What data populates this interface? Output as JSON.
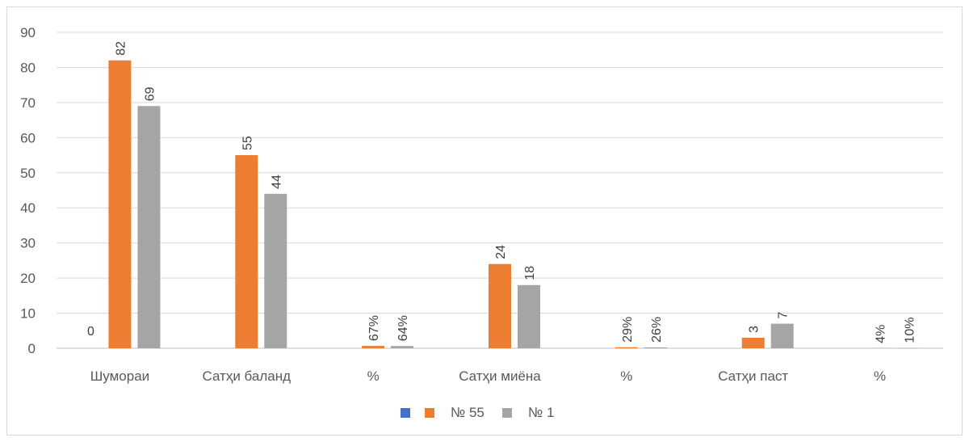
{
  "chart_data": {
    "type": "bar",
    "categories": [
      "Шумораи",
      "Сатҳи баланд",
      "%",
      "Сатҳи миёна",
      "%",
      "Сатҳи паст",
      "%"
    ],
    "ylim": [
      0,
      90
    ],
    "y_ticks": [
      0,
      10,
      20,
      30,
      40,
      50,
      60,
      70,
      80,
      90
    ],
    "grid": true,
    "legend_position": "bottom",
    "series": [
      {
        "name": "",
        "color": "#4472c4",
        "values": [
          0,
          null,
          null,
          null,
          null,
          null,
          null
        ],
        "labels": [
          "0",
          "",
          "",
          "",
          "",
          "",
          ""
        ]
      },
      {
        "name": "№ 55",
        "color": "#ed7d31",
        "values": [
          82,
          55,
          0.67,
          24,
          0.29,
          3,
          0.04
        ],
        "labels": [
          "82",
          "55",
          "67%",
          "24",
          "29%",
          "3",
          "4%"
        ]
      },
      {
        "name": "№ 1",
        "color": "#a5a5a5",
        "values": [
          69,
          44,
          0.64,
          18,
          0.26,
          7,
          0.1
        ],
        "labels": [
          "69",
          "44",
          "64%",
          "18",
          "26%",
          "7",
          "10%"
        ]
      }
    ]
  }
}
